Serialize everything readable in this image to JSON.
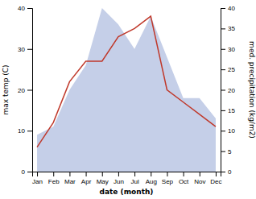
{
  "chart_data": {
    "type": "line",
    "title": "",
    "categories": [
      "Jan",
      "Feb",
      "Mar",
      "Apr",
      "May",
      "Jun",
      "Jul",
      "Aug",
      "Sep",
      "Oct",
      "Nov",
      "Dec"
    ],
    "series": [
      {
        "type": "area",
        "color": "#c5cfe8",
        "axis": "y2",
        "values": [
          9,
          11,
          20,
          26,
          40,
          36,
          30,
          38,
          28,
          18,
          18,
          13
        ]
      },
      {
        "type": "line",
        "color": "#c0392b",
        "values": [
          6,
          12,
          22,
          27,
          27,
          33,
          35,
          38,
          20,
          17,
          14,
          11
        ]
      }
    ],
    "xlabel": "date (month)",
    "ylabel": "max temp (C)",
    "y2label": "med. precipitation (kg/m2)",
    "ylim": [
      0,
      40
    ],
    "yticks": [
      0,
      10,
      20,
      30,
      40
    ],
    "y2lim": [
      0,
      40
    ],
    "y2ticks": [
      0,
      5,
      10,
      15,
      20,
      25,
      30,
      35,
      40
    ],
    "grid": false
  }
}
